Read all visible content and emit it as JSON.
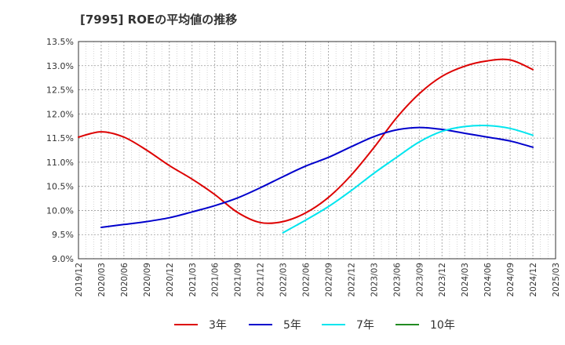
{
  "chart_data": {
    "type": "line",
    "title": "[7995]  ROEの平均値の推移",
    "xlabel": "",
    "ylabel": "",
    "ylim": [
      9.0,
      13.5
    ],
    "yticks": [
      "9.0%",
      "9.5%",
      "10.0%",
      "10.5%",
      "11.0%",
      "11.5%",
      "12.0%",
      "12.5%",
      "13.0%",
      "13.5%"
    ],
    "ytick_values": [
      9.0,
      9.5,
      10.0,
      10.5,
      11.0,
      11.5,
      12.0,
      12.5,
      13.0,
      13.5
    ],
    "categories": [
      "2019/12",
      "2020/03",
      "2020/06",
      "2020/09",
      "2020/12",
      "2021/03",
      "2021/06",
      "2021/09",
      "2021/12",
      "2022/03",
      "2022/06",
      "2022/09",
      "2022/12",
      "2023/03",
      "2023/06",
      "2023/09",
      "2023/12",
      "2024/03",
      "2024/06",
      "2024/09",
      "2024/12",
      "2025/03"
    ],
    "grid": true,
    "legend_position": "bottom",
    "series": [
      {
        "name": "3年",
        "color": "#dd0000",
        "values": [
          11.52,
          11.63,
          11.52,
          11.25,
          10.93,
          10.65,
          10.33,
          9.96,
          9.75,
          9.77,
          9.95,
          10.27,
          10.73,
          11.3,
          11.92,
          12.42,
          12.78,
          12.99,
          13.1,
          13.12,
          12.92,
          null
        ]
      },
      {
        "name": "5年",
        "color": "#0000cc",
        "values": [
          null,
          9.65,
          9.71,
          9.77,
          9.85,
          9.97,
          10.1,
          10.26,
          10.47,
          10.7,
          10.92,
          11.1,
          11.32,
          11.53,
          11.67,
          11.72,
          11.68,
          11.6,
          11.52,
          11.44,
          11.31,
          null
        ]
      },
      {
        "name": "7年",
        "color": "#00e5ee",
        "values": [
          null,
          null,
          null,
          null,
          null,
          null,
          null,
          null,
          null,
          9.54,
          9.8,
          10.08,
          10.41,
          10.77,
          11.1,
          11.42,
          11.64,
          11.74,
          11.76,
          11.7,
          11.56,
          null
        ]
      },
      {
        "name": "10年",
        "color": "#228b22",
        "values": [
          null,
          null,
          null,
          null,
          null,
          null,
          null,
          null,
          null,
          null,
          null,
          null,
          null,
          null,
          null,
          null,
          null,
          null,
          null,
          null,
          null,
          null
        ]
      }
    ]
  }
}
